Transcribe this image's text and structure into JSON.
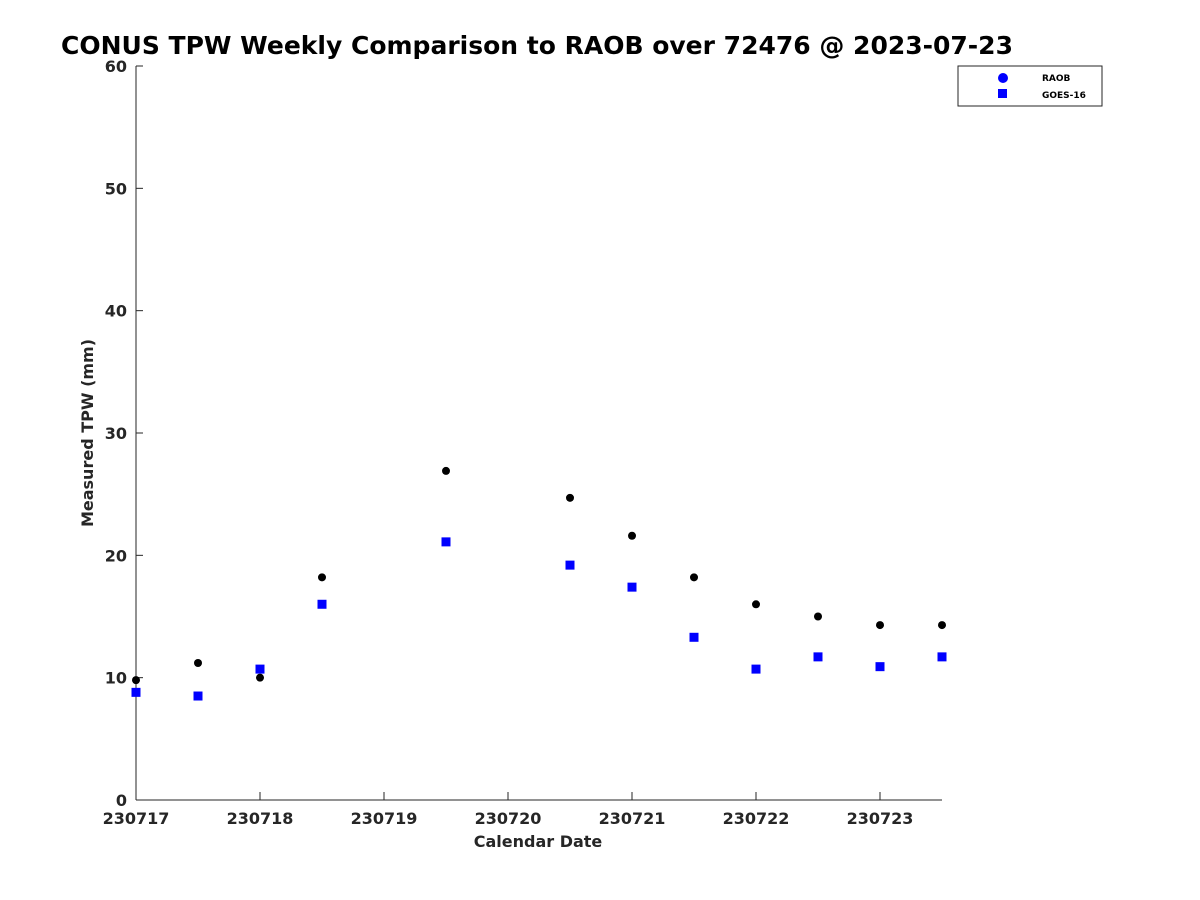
{
  "chart_data": {
    "type": "scatter",
    "title": "CONUS TPW Weekly Comparison to RAOB over 72476 @ 2023-07-23",
    "xlabel": "Calendar Date",
    "ylabel": "Measured TPW (mm)",
    "xlim": [
      0,
      6.5
    ],
    "ylim": [
      0,
      60
    ],
    "x_ticks": [
      0,
      1,
      2,
      3,
      4,
      5,
      6
    ],
    "x_tick_labels": [
      "230717",
      "230718",
      "230719",
      "230720",
      "230721",
      "230722",
      "230723"
    ],
    "y_ticks": [
      0,
      10,
      20,
      30,
      40,
      50,
      60
    ],
    "y_tick_labels": [
      "0",
      "10",
      "20",
      "30",
      "40",
      "50",
      "60"
    ],
    "grid": false,
    "legend_position": "top-right",
    "series": [
      {
        "name": "RAOB",
        "marker": "circle",
        "color": "#000000",
        "legend_color": "#0000ff",
        "x": [
          0,
          0.5,
          1,
          1.5,
          2.5,
          3.5,
          4,
          4.5,
          5,
          5.5,
          6,
          6.5
        ],
        "y": [
          9.8,
          11.2,
          10.0,
          18.2,
          26.9,
          24.7,
          21.6,
          18.2,
          16.0,
          15.0,
          14.3,
          14.3
        ]
      },
      {
        "name": "GOES-16",
        "marker": "square",
        "color": "#0000ff",
        "legend_color": "#0000ff",
        "x": [
          0,
          0.5,
          1,
          1.5,
          2.5,
          3.5,
          4,
          4.5,
          5,
          5.5,
          6,
          6.5
        ],
        "y": [
          8.8,
          8.5,
          10.7,
          16.0,
          21.1,
          19.2,
          17.4,
          13.3,
          10.7,
          11.7,
          10.9,
          11.7
        ]
      }
    ]
  }
}
